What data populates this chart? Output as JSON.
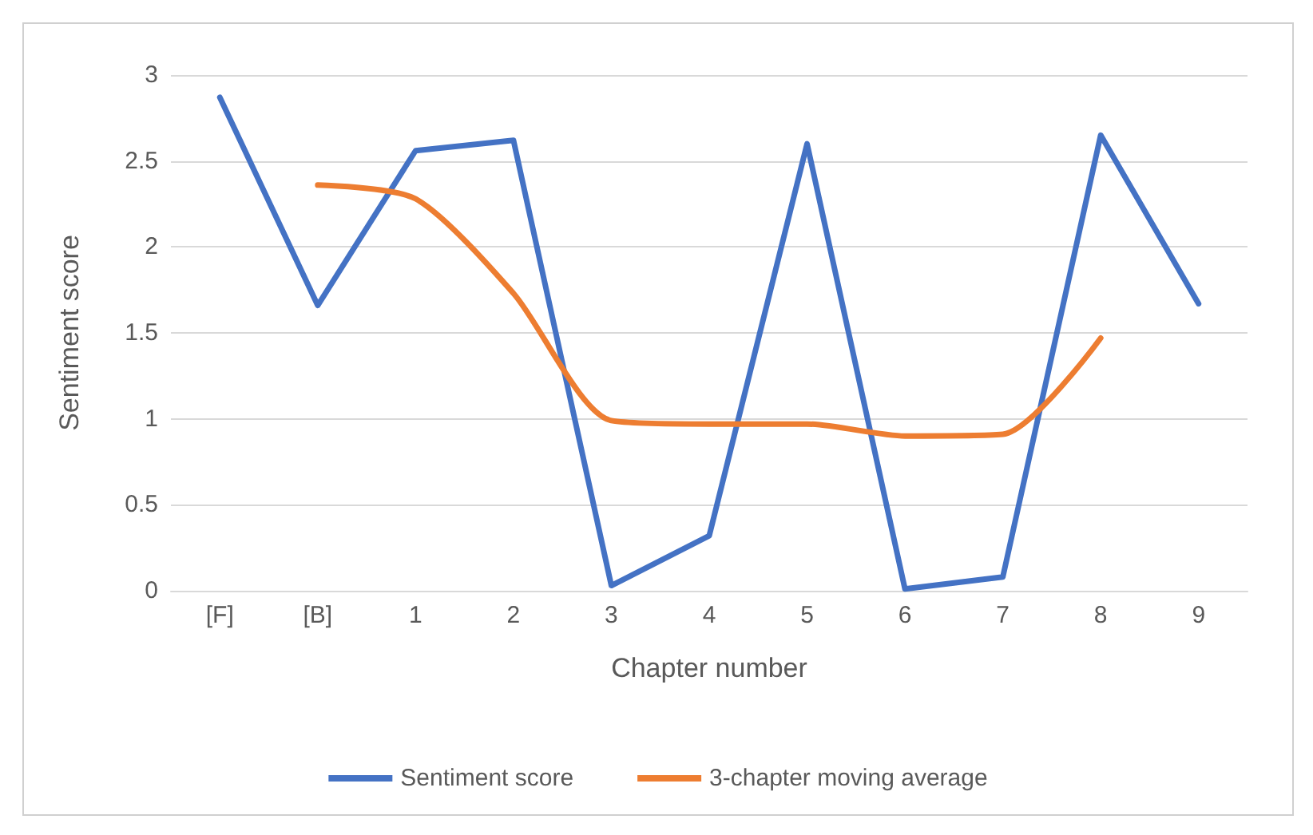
{
  "chart_data": {
    "type": "line",
    "xlabel": "Chapter number",
    "ylabel": "Sentiment score",
    "categories": [
      "[F]",
      "[B]",
      "1",
      "2",
      "3",
      "4",
      "5",
      "6",
      "7",
      "8",
      "9"
    ],
    "series": [
      {
        "name": "Sentiment score",
        "color": "#4472c4",
        "values": [
          2.87,
          1.66,
          2.56,
          2.62,
          0.03,
          0.32,
          2.6,
          0.01,
          0.08,
          2.65,
          1.67
        ]
      },
      {
        "name": "3-chapter moving average",
        "color": "#ed7d31",
        "values": [
          null,
          2.36,
          2.28,
          1.73,
          0.99,
          0.97,
          0.97,
          0.9,
          0.91,
          1.47,
          null
        ]
      }
    ],
    "ylim": [
      0,
      3
    ],
    "yticks": [
      0,
      0.5,
      1,
      1.5,
      2,
      2.5,
      3
    ],
    "grid": "y",
    "legend": "bottom",
    "marker": "none",
    "line_style": "solid"
  }
}
